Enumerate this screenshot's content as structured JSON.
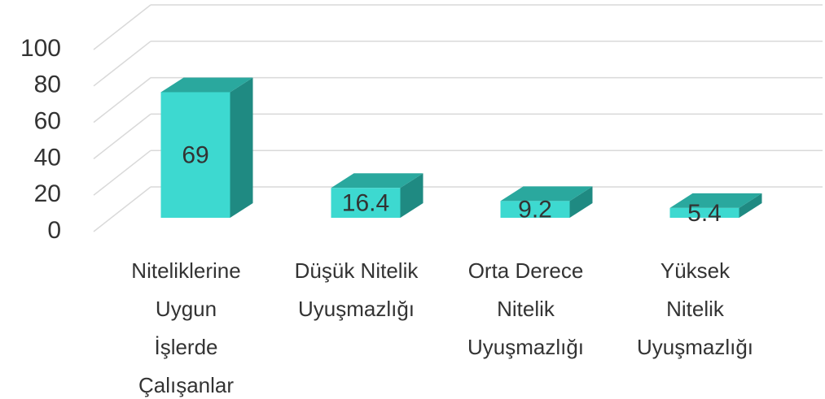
{
  "chart_data": {
    "type": "bar3d",
    "categories": [
      [
        "Niteliklerine",
        "Uygun",
        "İşlerde",
        "Çalışanlar"
      ],
      [
        "Düşük Nitelik",
        "Uyuşmazlığı"
      ],
      [
        "Orta Derece",
        "Nitelik",
        "Uyuşmazlığı"
      ],
      [
        "Yüksek",
        "Nitelik",
        "Uyuşmazlığı"
      ]
    ],
    "values": [
      69,
      16.4,
      9.2,
      5.4
    ],
    "colors": {
      "front": "#3dd9d0",
      "top": "#2aa89e",
      "side": "#1f8a82"
    },
    "ylim": [
      0,
      100
    ],
    "yticks": [
      0,
      20,
      40,
      60,
      80,
      100
    ],
    "grid": true
  }
}
